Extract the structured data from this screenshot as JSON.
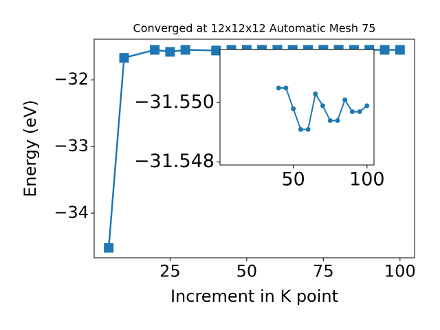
{
  "chart_data": [
    {
      "type": "line",
      "title": "Converged at 12x12x12 Automatic Mesh 75",
      "x_label": "Increment in K point",
      "y_label": "Energy (eV)",
      "x": [
        5,
        10,
        20,
        25,
        30,
        40,
        45,
        50,
        55,
        60,
        65,
        70,
        75,
        80,
        85,
        90,
        95,
        100
      ],
      "series": [
        {
          "color": "#1f77b4",
          "marker": "square",
          "values": [
            -34.52,
            -31.67,
            -31.55,
            -31.58,
            -31.55,
            -31.56,
            -31.5505,
            -31.5498,
            -31.5491,
            -31.5491,
            -31.5503,
            -31.5499,
            -31.5494,
            -31.5494,
            -31.5501,
            -31.5497,
            -31.5497,
            -31.5499
          ]
        }
      ],
      "xlim": [
        0.25,
        104.75
      ],
      "xticks": [
        25,
        50,
        75,
        100
      ],
      "ylim": [
        -34.67,
        -31.39
      ],
      "yticks": [
        {
          "value": -32,
          "label": "−32"
        },
        {
          "value": -33,
          "label": "−33"
        },
        {
          "value": -34,
          "label": "−34"
        }
      ]
    },
    {
      "type": "line",
      "inset": true,
      "x": [
        40,
        45,
        50,
        55,
        60,
        65,
        70,
        75,
        80,
        85,
        90,
        95,
        100
      ],
      "series": [
        {
          "color": "#1f77b4",
          "marker": "circle",
          "values": [
            -31.5505,
            -31.5505,
            -31.5498,
            -31.5491,
            -31.5491,
            -31.5503,
            -31.5499,
            -31.5494,
            -31.5494,
            -31.5501,
            -31.5497,
            -31.5497,
            -31.5499
          ]
        }
      ],
      "xlim": [
        0.25,
        104.75
      ],
      "xticks": [
        50,
        100
      ],
      "ylim": [
        -31.5518,
        -31.5479
      ],
      "y_inverted": true,
      "yticks": [
        {
          "value": -31.55,
          "label": "−31.550"
        },
        {
          "value": -31.548,
          "label": "−31.548"
        }
      ]
    }
  ]
}
